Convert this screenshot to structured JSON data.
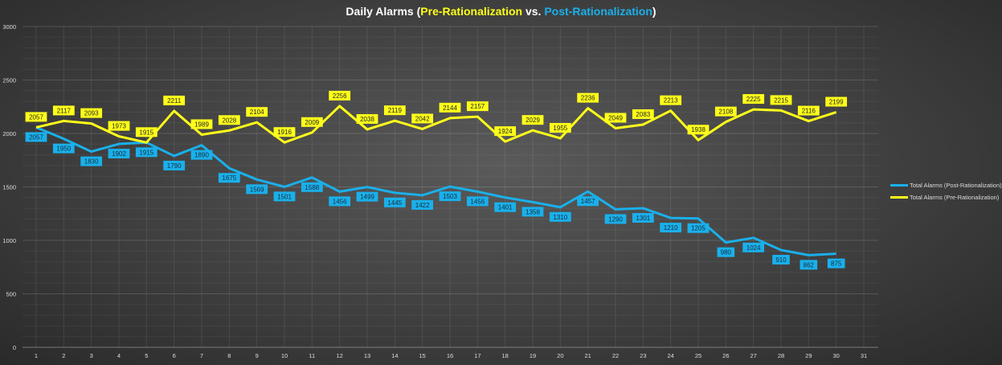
{
  "title": {
    "prefix": "Daily Alarms (",
    "pre": "Pre-Rationalization",
    "mid": " vs. ",
    "post": "Post-Rationalization",
    "suffix": ")"
  },
  "chart_data": {
    "type": "line",
    "title": "Daily Alarms (Pre-Rationalization vs. Post-Rationalization)",
    "x": [
      1,
      2,
      3,
      4,
      5,
      6,
      7,
      8,
      9,
      10,
      11,
      12,
      13,
      14,
      15,
      16,
      17,
      18,
      19,
      20,
      21,
      22,
      23,
      24,
      25,
      26,
      27,
      28,
      29,
      30
    ],
    "x_ticks": [
      1,
      2,
      3,
      4,
      5,
      6,
      7,
      8,
      9,
      10,
      11,
      12,
      13,
      14,
      15,
      16,
      17,
      18,
      19,
      20,
      21,
      22,
      23,
      24,
      25,
      26,
      27,
      28,
      29,
      30,
      31
    ],
    "ylim": [
      0,
      3000
    ],
    "y_ticks": [
      0,
      500,
      1000,
      1500,
      2000,
      2500,
      3000
    ],
    "grid": true,
    "legend_position": "right",
    "series": [
      {
        "name": "Total Alarms (Post-Rationalization)",
        "color": "#1ab0ea",
        "values": [
          2057,
          1950,
          1830,
          1902,
          1915,
          1790,
          1890,
          1675,
          1569,
          1501,
          1588,
          1456,
          1499,
          1445,
          1422,
          1503,
          1456,
          1401,
          1358,
          1310,
          1457,
          1290,
          1301,
          1210,
          1205,
          980,
          1024,
          910,
          862,
          875
        ]
      },
      {
        "name": "Total Alarms (Pre-Rationalization)",
        "color": "#ffff1a",
        "values": [
          2057,
          2117,
          2093,
          1973,
          1915,
          2211,
          1989,
          2028,
          2104,
          1916,
          2009,
          2256,
          2038,
          2119,
          2042,
          2144,
          2157,
          1924,
          2029,
          1955,
          2236,
          2049,
          2083,
          2213,
          1938,
          2108,
          2225,
          2215,
          2116,
          2199
        ]
      }
    ]
  }
}
